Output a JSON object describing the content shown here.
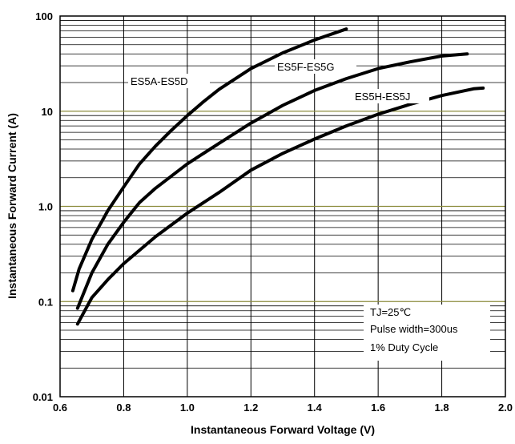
{
  "chart_data": {
    "type": "line",
    "xlabel": "Instantaneous Forward Voltage (V)",
    "ylabel": "Instantaneous Forward Current (A)",
    "xlim": [
      0.6,
      2.0
    ],
    "ylim": [
      0.01,
      100
    ],
    "yscale": "log",
    "grid": true,
    "x_ticks": [
      "0.6",
      "0.8",
      "1.0",
      "1.2",
      "1.4",
      "1.6",
      "1.8",
      "2.0"
    ],
    "y_ticks": [
      "0.01",
      "0.1",
      "1.0",
      "10",
      "100"
    ],
    "colors": {
      "series": "#000000",
      "grid": "#000000",
      "major_grid": "#8c8c3c"
    },
    "series": [
      {
        "name": "ES5A-ES5D",
        "points": [
          [
            0.64,
            0.13
          ],
          [
            0.66,
            0.22
          ],
          [
            0.7,
            0.45
          ],
          [
            0.75,
            0.9
          ],
          [
            0.8,
            1.6
          ],
          [
            0.85,
            2.8
          ],
          [
            0.9,
            4.3
          ],
          [
            0.95,
            6.3
          ],
          [
            1.0,
            9.0
          ],
          [
            1.05,
            12.5
          ],
          [
            1.1,
            17
          ],
          [
            1.2,
            28
          ],
          [
            1.3,
            41
          ],
          [
            1.4,
            56
          ],
          [
            1.5,
            73
          ]
        ]
      },
      {
        "name": "ES5F-ES5G",
        "points": [
          [
            0.655,
            0.085
          ],
          [
            0.7,
            0.2
          ],
          [
            0.75,
            0.4
          ],
          [
            0.8,
            0.68
          ],
          [
            0.85,
            1.1
          ],
          [
            0.9,
            1.55
          ],
          [
            1.0,
            2.8
          ],
          [
            1.1,
            4.6
          ],
          [
            1.2,
            7.5
          ],
          [
            1.3,
            11.5
          ],
          [
            1.4,
            16.5
          ],
          [
            1.5,
            22
          ],
          [
            1.6,
            28
          ],
          [
            1.7,
            33
          ],
          [
            1.8,
            38
          ],
          [
            1.88,
            40
          ]
        ]
      },
      {
        "name": "ES5H-ES5J",
        "points": [
          [
            0.655,
            0.058
          ],
          [
            0.7,
            0.11
          ],
          [
            0.75,
            0.17
          ],
          [
            0.8,
            0.25
          ],
          [
            0.9,
            0.48
          ],
          [
            1.0,
            0.85
          ],
          [
            1.1,
            1.4
          ],
          [
            1.2,
            2.4
          ],
          [
            1.3,
            3.6
          ],
          [
            1.4,
            5.1
          ],
          [
            1.5,
            7.0
          ],
          [
            1.6,
            9.3
          ],
          [
            1.7,
            11.8
          ],
          [
            1.8,
            14.6
          ],
          [
            1.9,
            17.2
          ],
          [
            1.93,
            17.5
          ]
        ]
      }
    ],
    "annotations": [
      "TJ=25℃",
      "Pulse width=300us",
      "1% Duty Cycle"
    ]
  }
}
